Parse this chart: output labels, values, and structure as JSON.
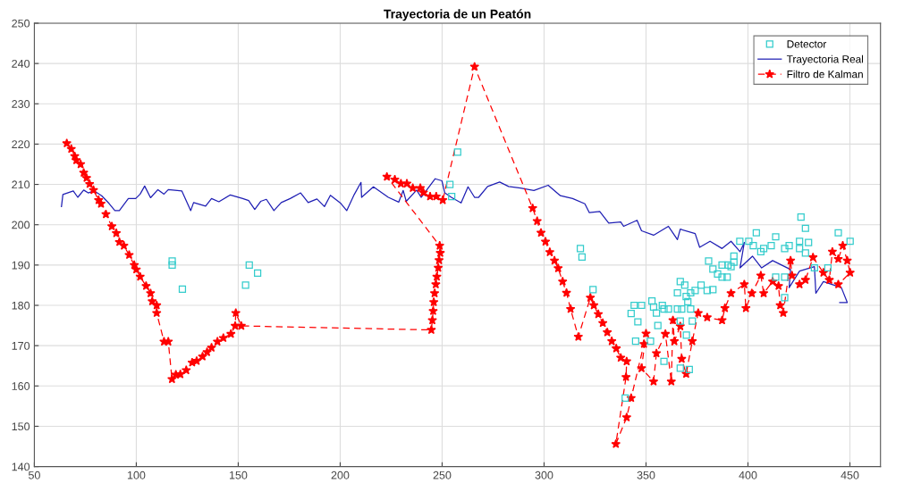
{
  "chart_data": {
    "type": "line",
    "title": "Trayectoria de un Peatón",
    "xlim": [
      50,
      465
    ],
    "ylim": [
      140,
      250
    ],
    "xticks": [
      50,
      100,
      150,
      200,
      250,
      300,
      350,
      400,
      450
    ],
    "yticks": [
      140,
      150,
      160,
      170,
      180,
      190,
      200,
      210,
      220,
      230,
      240,
      250
    ],
    "grid": true,
    "legend": "top right",
    "series": [
      {
        "name": "Detector",
        "type": "scatter",
        "color": "#33cccc",
        "marker": "square",
        "line_style": "none",
        "x": [
          117.6,
          117.6,
          122.6,
          155.4,
          159.5,
          153.6,
          257.6,
          253.8,
          254.7,
          426,
          317.8,
          318.6,
          324,
          428.2,
          444.3,
          450.1,
          404.1,
          413.6,
          396,
          400.4,
          402.6,
          406.3,
          407.7,
          425.3,
          429.7,
          425.3,
          428.2,
          418,
          420.2,
          411.4,
          393.1,
          393.1,
          391.7,
          380.7,
          382.8,
          387.3,
          390.2,
          385.1,
          387.3,
          389.8,
          366.8,
          365.4,
          369,
          371.9,
          374.1,
          377,
          380,
          382.8,
          369.7,
          370.5,
          352.9,
          353.7,
          358,
          344.2,
          347.8,
          342.7,
          355.1,
          358.8,
          361,
          365.4,
          367.5,
          371.9,
          346,
          355.8,
          366.8,
          372.7,
          369.8,
          344.9,
          352.2,
          358.8,
          366.8,
          371.2,
          339.8,
          418,
          413.6,
          432.6,
          439.2,
          418
        ],
        "values": [
          191,
          190,
          184,
          190,
          188,
          185,
          218,
          210,
          207,
          201.9,
          194.1,
          192,
          183.9,
          199.1,
          198,
          195.9,
          198,
          197,
          195.9,
          195.9,
          194.8,
          193.3,
          194.1,
          195.9,
          195.6,
          194.1,
          193,
          194.1,
          194.8,
          194.8,
          192.2,
          190.7,
          189.6,
          191,
          189,
          190,
          190,
          187.8,
          187,
          187,
          185.9,
          183.1,
          185,
          183.1,
          183.7,
          185,
          183.7,
          183.9,
          182.2,
          180.9,
          181.1,
          179.6,
          180,
          180,
          180,
          178,
          178.1,
          179.1,
          179.1,
          179.1,
          179.1,
          179.1,
          175.9,
          175,
          176.1,
          176.1,
          172.6,
          171.1,
          171.1,
          166.1,
          164.4,
          164.1,
          157,
          187,
          187,
          189.3,
          189.3,
          181.9
        ]
      },
      {
        "name": "Trayectoria Real",
        "color": "#1f1fb4",
        "marker": "none",
        "line_style": "solid",
        "x": [
          63.3,
          64,
          69.1,
          71.3,
          74.2,
          76.4,
          79.3,
          83,
          86.6,
          89.5,
          91.7,
          96.1,
          99.7,
          101.9,
          104.1,
          107,
          110.6,
          113.6,
          115.7,
          122.3,
          126.7,
          128.1,
          134,
          136.9,
          140.5,
          146.1,
          152.2,
          155.1,
          158.1,
          161,
          163.8,
          167.5,
          171.1,
          175.5,
          180.6,
          184.3,
          188.6,
          192.3,
          195.2,
          200.3,
          203.2,
          206.9,
          210.2,
          210.5,
          216.3,
          223.6,
          228.7,
          230.9,
          232.4,
          237.5,
          239.7,
          246.6,
          249.9,
          251.3,
          254.5,
          259.3,
          262.7,
          265.9,
          267.9,
          272.3,
          278.2,
          282.6,
          288.4,
          295,
          302,
          308,
          314,
          320,
          322.2,
          327.3,
          331.7,
          337.6,
          339,
          345.6,
          347.8,
          353.7,
          361,
          365.4,
          366.8,
          374.1,
          376.3,
          381.4,
          387.3,
          391.7,
          396.1,
          398.2,
          396.1,
          402.2,
          406.7,
          412.1,
          416.5,
          420.9,
          420.2,
          425.3,
          432.6,
          433.3,
          437,
          445.8,
          448.7,
          445
        ],
        "values": [
          204.5,
          207.5,
          208.4,
          206.8,
          208.6,
          207.9,
          208.4,
          207.2,
          205.3,
          203.5,
          203.5,
          206.5,
          206.5,
          207.6,
          209.6,
          206.7,
          208.7,
          207.6,
          208.7,
          208.4,
          203.5,
          205.5,
          204.6,
          206.5,
          205.7,
          207.4,
          206.5,
          206,
          203.8,
          205.8,
          206.3,
          203.5,
          205.5,
          206.5,
          207.9,
          205.5,
          206.4,
          204.5,
          207.3,
          205.3,
          203.5,
          207.5,
          210.5,
          206.8,
          209.4,
          206.8,
          205.6,
          208.5,
          205.8,
          208.6,
          206.8,
          211.4,
          210.9,
          207.9,
          206.8,
          205.4,
          209.4,
          206.8,
          206.8,
          209.5,
          210.6,
          209.5,
          209.1,
          208.5,
          209.8,
          207.2,
          206.5,
          205.2,
          203,
          203.3,
          200.4,
          200.7,
          199.6,
          201.1,
          198.5,
          197.4,
          199.6,
          196.3,
          198.9,
          197.8,
          194.4,
          195.9,
          194.1,
          195.9,
          193.3,
          195.6,
          189.3,
          192.2,
          189.3,
          191.1,
          190,
          188.9,
          184.4,
          188.5,
          189.6,
          183,
          185.9,
          184.4,
          180.7,
          180.7
        ]
      },
      {
        "name": "Filtro de Kalman",
        "color": "#ff0000",
        "marker": "star",
        "line_style": "dashed",
        "x": [
          65.9,
          68.1,
          69.8,
          70.6,
          72.7,
          74.2,
          75.6,
          77.1,
          79,
          81.5,
          82.7,
          85.1,
          88,
          90.2,
          91.7,
          93.9,
          96.5,
          99,
          100,
          101.9,
          104.8,
          107,
          107.8,
          110,
          110,
          113.6,
          115.7,
          117.5,
          119.4,
          121.6,
          124.5,
          127.4,
          129.6,
          132.5,
          134.7,
          136.9,
          139.8,
          142.7,
          146.4,
          148.5,
          148.8,
          151.5,
          244.7,
          245.2,
          245.6,
          245.9,
          246.3,
          246.9,
          247.4,
          248.1,
          248.5,
          249.1,
          248.8,
          222.9,
          226.8,
          229.8,
          232.7,
          235.6,
          239.3,
          240.8,
          244.1,
          247.1,
          250.3,
          265.9,
          294.4,
          296.6,
          298.5,
          300.7,
          302.8,
          305.1,
          306.9,
          309.1,
          311,
          313,
          316.8,
          322.7,
          324.4,
          326.6,
          328.8,
          331,
          333.2,
          335.4,
          337.6,
          340.5,
          340.2,
          335.2,
          340.5,
          342.7,
          349,
          350,
          347.8,
          353.7,
          355.1,
          359.5,
          362.4,
          363.2,
          363.9,
          366.8,
          367.5,
          369.7,
          372.7,
          375.6,
          380,
          387.3,
          388.7,
          391.7,
          398.2,
          399,
          401.9,
          406.3,
          407.7,
          412.1,
          415,
          415.8,
          417.3,
          420.9,
          421.6,
          425.3,
          428.2,
          431.9,
          437,
          439.9,
          441.4,
          444.3,
          446.5,
          448.7,
          450.1,
          444.3
        ],
        "values": [
          220.2,
          218.8,
          217,
          216,
          215,
          212.9,
          211.6,
          210.1,
          208.6,
          206.1,
          205.2,
          202.6,
          199.6,
          197.9,
          195.7,
          194.8,
          192.5,
          190,
          188.9,
          187.1,
          184.8,
          183,
          181,
          180,
          178.1,
          171,
          171,
          161.7,
          162.8,
          162.9,
          163.9,
          165.8,
          166.2,
          167.3,
          168.4,
          169.5,
          171,
          171.9,
          172.9,
          174.9,
          178.1,
          174.9,
          173.9,
          176.3,
          178.6,
          180.8,
          183,
          185.2,
          187.1,
          189.3,
          191.2,
          193,
          194.8,
          211.9,
          211.2,
          210.2,
          210.2,
          209.1,
          209.1,
          208,
          207,
          207,
          206.1,
          239.2,
          204.1,
          200.9,
          198,
          195.8,
          193.2,
          191.1,
          189.2,
          185.9,
          183.1,
          179.1,
          172.2,
          181.9,
          180,
          177.8,
          175.6,
          173.3,
          171.1,
          169.3,
          167,
          166.1,
          162.2,
          145.6,
          152.2,
          157,
          170.4,
          173,
          164.4,
          161.1,
          168.1,
          172.9,
          161.1,
          176.3,
          171.1,
          174.8,
          166.7,
          163,
          171.1,
          178.1,
          177,
          176.3,
          179.3,
          183,
          185.2,
          179.3,
          183,
          187.4,
          183,
          185.9,
          184.8,
          180,
          178.1,
          191.1,
          187.4,
          185.2,
          186.3,
          191.9,
          188.1,
          186.3,
          193.3,
          191.5,
          194.8,
          191.1,
          188.1,
          185.2
        ]
      }
    ]
  }
}
